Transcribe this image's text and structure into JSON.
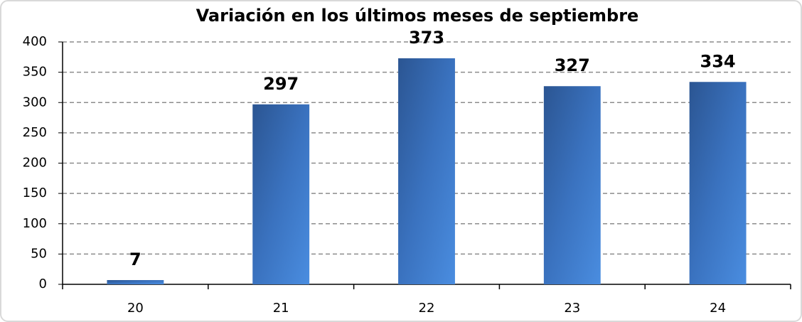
{
  "chart_data": {
    "type": "bar",
    "title": "Variación en los últimos meses de septiembre",
    "categories": [
      "20",
      "21",
      "22",
      "23",
      "24"
    ],
    "values": [
      7,
      297,
      373,
      327,
      334
    ],
    "color": "#3b72bd",
    "ylim": [
      0,
      400
    ],
    "yticks": [
      0,
      50,
      100,
      150,
      200,
      250,
      300,
      350,
      400
    ],
    "grid": true
  }
}
